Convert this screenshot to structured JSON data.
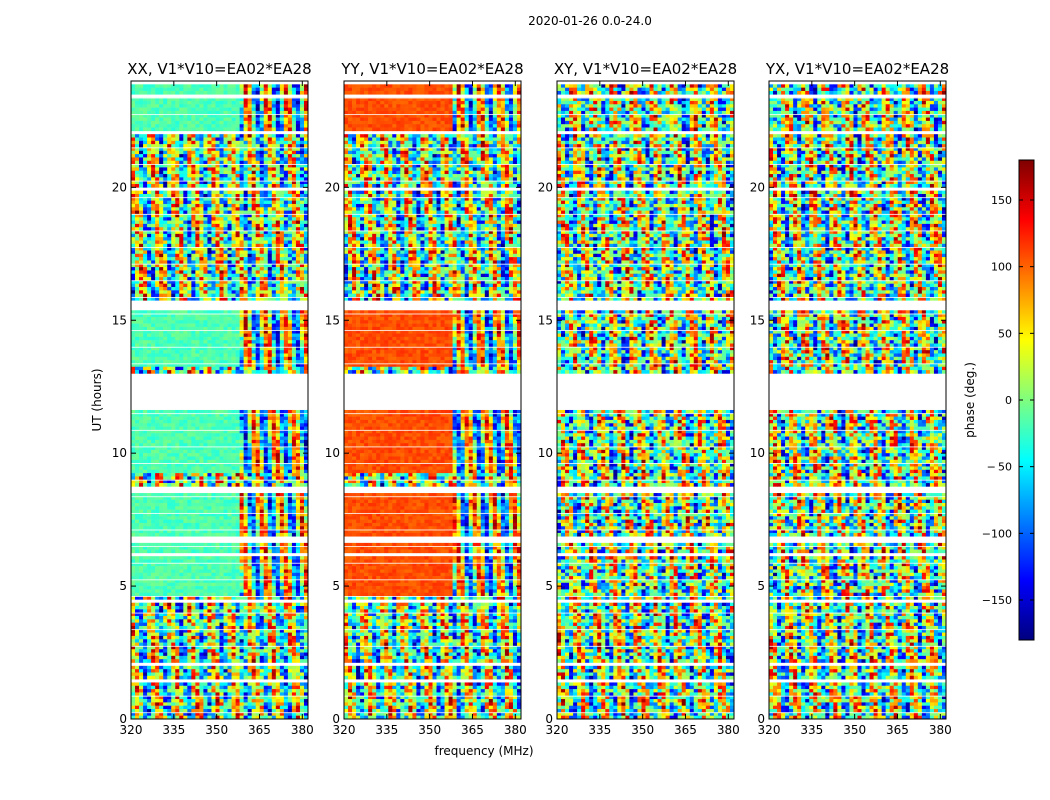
{
  "figure": {
    "suptitle": "2020-01-26 0.0-24.0"
  },
  "chart_data": {
    "type": "heatmap",
    "title": "2020-01-26 0.0-24.0",
    "xlabel": "frequency (MHz)",
    "ylabel": "UT (hours)",
    "xlim": [
      320,
      382
    ],
    "ylim": [
      0,
      24
    ],
    "xticks": [
      320,
      335,
      350,
      365,
      380
    ],
    "yticks": [
      0,
      5,
      10,
      15,
      20
    ],
    "panels": [
      {
        "title": "XX, V1*V10=EA02*EA28",
        "pol": "XX",
        "style": "xx"
      },
      {
        "title": "YY, V1*V10=EA02*EA28",
        "pol": "YY",
        "style": "yy"
      },
      {
        "title": "XY, V1*V10=EA02*EA28",
        "pol": "XY",
        "style": "cross"
      },
      {
        "title": "YX, V1*V10=EA02*EA28",
        "pol": "YX",
        "style": "cross"
      }
    ],
    "flagged_ut_ranges": [
      [
        1.4,
        1.55
      ],
      [
        1.95,
        2.1
      ],
      [
        4.4,
        4.55
      ],
      [
        6.15,
        6.3
      ],
      [
        6.65,
        6.85
      ],
      [
        8.55,
        8.75
      ],
      [
        11.65,
        13.0
      ],
      [
        15.4,
        15.75
      ],
      [
        19.9,
        20.05
      ],
      [
        22.0,
        22.1
      ],
      [
        23.35,
        23.5
      ],
      [
        23.85,
        24.0
      ]
    ],
    "colorbar": {
      "label": "phase (deg.)",
      "range": [
        -180,
        180
      ],
      "ticks": [
        150,
        100,
        50,
        0,
        -50,
        -100,
        -150
      ],
      "tick_labels": [
        "150",
        "100",
        "50",
        "0",
        "− 50",
        "−100",
        "−150"
      ],
      "colormap": "jet",
      "colors": [
        "#00007f",
        "#0000ff",
        "#007fff",
        "#00ffff",
        "#7fff7f",
        "#ffff00",
        "#ff7f00",
        "#ff0000",
        "#7f0000"
      ]
    }
  }
}
